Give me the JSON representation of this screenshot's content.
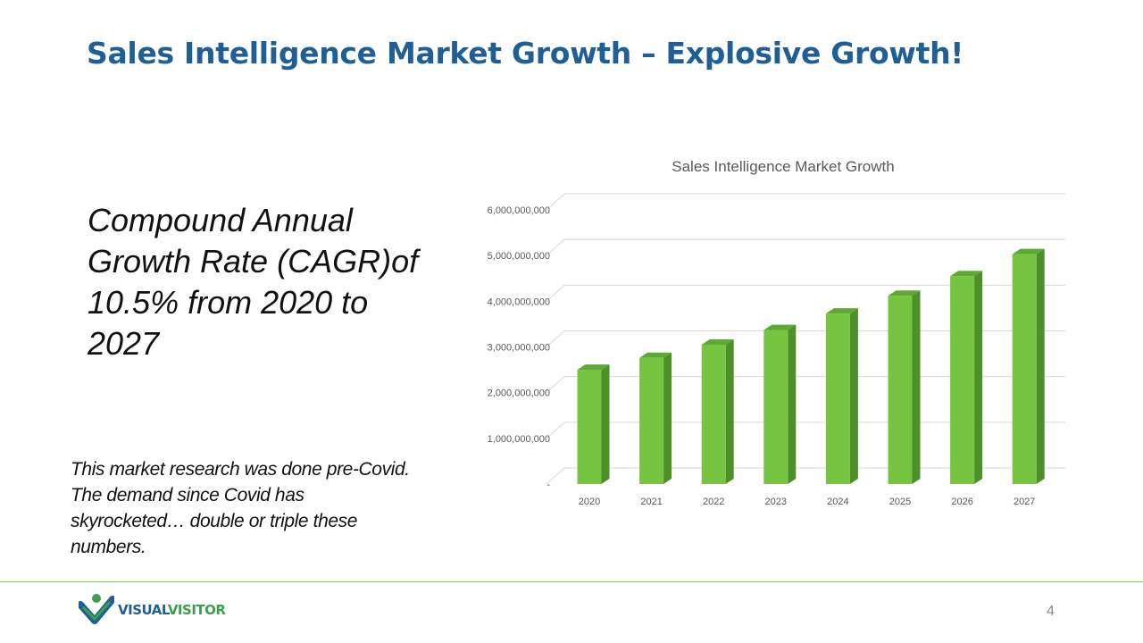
{
  "slide": {
    "title": "Sales Intelligence Market Growth – Explosive Growth!",
    "cagr_text": "Compound Annual Growth Rate (CAGR)of 10.5% from 2020 to 2027",
    "note_text": "This market research was done pre-Covid.  The demand since Covid has skyrocketed… double or triple these numbers.",
    "page_number": "4"
  },
  "logo": {
    "text_part1": "VISUAL",
    "text_part2": "VISITOR",
    "colors": {
      "blue": "#1f5f96",
      "green": "#3aa04a"
    }
  },
  "chart_data": {
    "type": "bar",
    "title": "Sales Intelligence Market Growth",
    "categories": [
      "2020",
      "2021",
      "2022",
      "2023",
      "2024",
      "2025",
      "2026",
      "2027"
    ],
    "values": [
      2500000000,
      2760000000,
      3050000000,
      3370000000,
      3730000000,
      4120000000,
      4550000000,
      5030000000
    ],
    "ylim": [
      0,
      6000000000
    ],
    "yticks": [
      "-",
      "1,000,000,000",
      "2,000,000,000",
      "3,000,000,000",
      "4,000,000,000",
      "5,000,000,000",
      "6,000,000,000"
    ],
    "xlabel": "",
    "ylabel": "",
    "grid": true,
    "bar_color": "#76c442"
  }
}
